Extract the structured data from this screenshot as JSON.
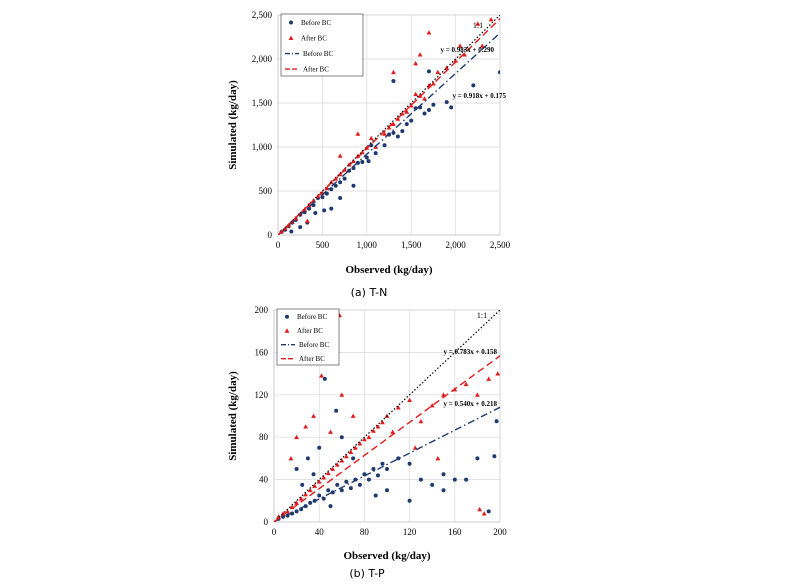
{
  "chart_data": [
    {
      "type": "scatter",
      "caption": "(a) T-N",
      "xlabel": "Observed (kg/day)",
      "ylabel": "Simulated (kg/day)",
      "xlim": [
        0,
        2500
      ],
      "ylim": [
        0,
        2500
      ],
      "xticks": [
        "0",
        "500",
        "1,000",
        "1,500",
        "2,000",
        "2,500"
      ],
      "yticks": [
        "0",
        "500",
        "1,000",
        "1,500",
        "2,000",
        "2,500"
      ],
      "grid": true,
      "legend_position": "top-left",
      "one_to_one_label": "1:1",
      "series": [
        {
          "name": "Before BC",
          "marker": "circle",
          "color": "#1f3a6e",
          "points": [
            [
              40,
              35
            ],
            [
              80,
              60
            ],
            [
              120,
              100
            ],
            [
              160,
              140
            ],
            [
              200,
              170
            ],
            [
              250,
              230
            ],
            [
              300,
              260
            ],
            [
              350,
              300
            ],
            [
              400,
              340
            ],
            [
              450,
              420
            ],
            [
              500,
              430
            ],
            [
              550,
              470
            ],
            [
              600,
              520
            ],
            [
              650,
              560
            ],
            [
              700,
              600
            ],
            [
              750,
              640
            ],
            [
              800,
              730
            ],
            [
              850,
              760
            ],
            [
              900,
              820
            ],
            [
              950,
              830
            ],
            [
              1000,
              880
            ],
            [
              1050,
              1020
            ],
            [
              1100,
              930
            ],
            [
              1200,
              1020
            ],
            [
              1250,
              1140
            ],
            [
              1300,
              1160
            ],
            [
              1350,
              1120
            ],
            [
              1400,
              1180
            ],
            [
              1450,
              1260
            ],
            [
              1500,
              1300
            ],
            [
              1550,
              1440
            ],
            [
              1600,
              1450
            ],
            [
              1650,
              1380
            ],
            [
              1700,
              1420
            ],
            [
              1750,
              1480
            ],
            [
              1900,
              1510
            ],
            [
              1950,
              1450
            ],
            [
              2200,
              1700
            ],
            [
              2500,
              1850
            ],
            [
              330,
              140
            ],
            [
              420,
              250
            ],
            [
              600,
              300
            ],
            [
              700,
              420
            ],
            [
              850,
              560
            ],
            [
              150,
              40
            ],
            [
              250,
              90
            ],
            [
              520,
              280
            ],
            [
              1020,
              840
            ],
            [
              1300,
              1750
            ],
            [
              1700,
              1860
            ]
          ]
        },
        {
          "name": "After BC",
          "marker": "triangle",
          "color": "#e41a1c",
          "points": [
            [
              40,
              40
            ],
            [
              80,
              75
            ],
            [
              120,
              110
            ],
            [
              160,
              150
            ],
            [
              200,
              190
            ],
            [
              250,
              240
            ],
            [
              300,
              290
            ],
            [
              350,
              340
            ],
            [
              400,
              390
            ],
            [
              450,
              440
            ],
            [
              500,
              480
            ],
            [
              550,
              530
            ],
            [
              600,
              600
            ],
            [
              650,
              640
            ],
            [
              700,
              690
            ],
            [
              750,
              740
            ],
            [
              800,
              800
            ],
            [
              850,
              840
            ],
            [
              900,
              900
            ],
            [
              950,
              940
            ],
            [
              1000,
              990
            ],
            [
              1050,
              1100
            ],
            [
              1100,
              1000
            ],
            [
              1200,
              1150
            ],
            [
              1250,
              1220
            ],
            [
              1300,
              1260
            ],
            [
              1350,
              1320
            ],
            [
              1400,
              1380
            ],
            [
              1450,
              1400
            ],
            [
              1500,
              1470
            ],
            [
              1550,
              1600
            ],
            [
              1600,
              1580
            ],
            [
              1650,
              1550
            ],
            [
              1700,
              1700
            ],
            [
              1750,
              1720
            ],
            [
              1800,
              1850
            ],
            [
              1900,
              1900
            ],
            [
              2000,
              1980
            ],
            [
              2100,
              2050
            ],
            [
              2250,
              2400
            ],
            [
              2300,
              2150
            ],
            [
              2400,
              2450
            ],
            [
              1300,
              1850
            ],
            [
              1600,
              2050
            ],
            [
              1700,
              2300
            ],
            [
              2050,
              2150
            ],
            [
              1550,
              1950
            ],
            [
              900,
              1150
            ],
            [
              700,
              900
            ],
            [
              330,
              160
            ]
          ]
        }
      ],
      "fit_lines": [
        {
          "name": "Before BC",
          "slope": 0.918,
          "intercept": 0.175,
          "equation": "y = 0.918x + 0.175",
          "color": "#1f3a6e",
          "dash": "dashdot"
        },
        {
          "name": "After BC",
          "slope": 0.983,
          "intercept": 0.29,
          "equation": "y = 0.983x + 0.290",
          "color": "#e41a1c",
          "dash": "dashed"
        }
      ]
    },
    {
      "type": "scatter",
      "caption": "(b) T-P",
      "xlabel": "Observed (kg/day)",
      "ylabel": "Simulated (kg/day)",
      "xlim": [
        0,
        200
      ],
      "ylim": [
        0,
        200
      ],
      "xticks": [
        "0",
        "40",
        "80",
        "120",
        "160",
        "200"
      ],
      "yticks": [
        "0",
        "40",
        "80",
        "120",
        "160",
        "200"
      ],
      "grid": true,
      "legend_position": "top-left",
      "one_to_one_label": "1:1",
      "series": [
        {
          "name": "Before BC",
          "marker": "circle",
          "color": "#1f3a6e",
          "points": [
            [
              4,
              3
            ],
            [
              8,
              5
            ],
            [
              12,
              6
            ],
            [
              16,
              8
            ],
            [
              20,
              10
            ],
            [
              24,
              12
            ],
            [
              28,
              15
            ],
            [
              32,
              18
            ],
            [
              36,
              20
            ],
            [
              40,
              25
            ],
            [
              44,
              22
            ],
            [
              48,
              30
            ],
            [
              52,
              28
            ],
            [
              56,
              35
            ],
            [
              60,
              30
            ],
            [
              64,
              38
            ],
            [
              68,
              32
            ],
            [
              72,
              40
            ],
            [
              76,
              35
            ],
            [
              80,
              45
            ],
            [
              84,
              40
            ],
            [
              88,
              50
            ],
            [
              92,
              44
            ],
            [
              96,
              55
            ],
            [
              100,
              50
            ],
            [
              110,
              60
            ],
            [
              120,
              55
            ],
            [
              130,
              40
            ],
            [
              140,
              35
            ],
            [
              150,
              30
            ],
            [
              160,
              40
            ],
            [
              180,
              60
            ],
            [
              190,
              10
            ],
            [
              195,
              62
            ],
            [
              197,
              95
            ],
            [
              45,
              135
            ],
            [
              40,
              70
            ],
            [
              30,
              60
            ],
            [
              20,
              50
            ],
            [
              55,
              105
            ],
            [
              60,
              80
            ],
            [
              100,
              30
            ],
            [
              120,
              20
            ],
            [
              150,
              45
            ],
            [
              170,
              40
            ],
            [
              35,
              45
            ],
            [
              25,
              35
            ],
            [
              70,
              60
            ],
            [
              90,
              25
            ],
            [
              50,
              15
            ]
          ]
        },
        {
          "name": "After BC",
          "marker": "triangle",
          "color": "#e41a1c",
          "points": [
            [
              4,
              5
            ],
            [
              8,
              8
            ],
            [
              12,
              10
            ],
            [
              16,
              14
            ],
            [
              20,
              18
            ],
            [
              24,
              22
            ],
            [
              28,
              26
            ],
            [
              32,
              30
            ],
            [
              36,
              34
            ],
            [
              40,
              38
            ],
            [
              44,
              42
            ],
            [
              48,
              46
            ],
            [
              52,
              50
            ],
            [
              56,
              54
            ],
            [
              60,
              58
            ],
            [
              64,
              62
            ],
            [
              68,
              66
            ],
            [
              72,
              70
            ],
            [
              76,
              74
            ],
            [
              80,
              78
            ],
            [
              84,
              80
            ],
            [
              88,
              86
            ],
            [
              92,
              90
            ],
            [
              96,
              94
            ],
            [
              100,
              100
            ],
            [
              110,
              108
            ],
            [
              120,
              115
            ],
            [
              130,
              95
            ],
            [
              140,
              110
            ],
            [
              150,
              120
            ],
            [
              160,
              125
            ],
            [
              170,
              130
            ],
            [
              180,
              120
            ],
            [
              190,
              135
            ],
            [
              198,
              140
            ],
            [
              45,
              195
            ],
            [
              58,
              195
            ],
            [
              42,
              138
            ],
            [
              20,
              80
            ],
            [
              28,
              90
            ],
            [
              35,
              100
            ],
            [
              15,
              60
            ],
            [
              60,
              120
            ],
            [
              70,
              100
            ],
            [
              50,
              85
            ],
            [
              105,
              85
            ],
            [
              125,
              70
            ],
            [
              145,
              60
            ],
            [
              182,
              12
            ],
            [
              186,
              8
            ]
          ]
        }
      ],
      "fit_lines": [
        {
          "name": "Before BC",
          "slope": 0.54,
          "intercept": 0.218,
          "equation": "y = 0.540x + 0.218",
          "color": "#1f3a6e",
          "dash": "dashdot"
        },
        {
          "name": "After BC",
          "slope": 0.783,
          "intercept": 0.158,
          "equation": "y = 0.783x + 0.158",
          "color": "#e41a1c",
          "dash": "dashed"
        }
      ]
    }
  ]
}
